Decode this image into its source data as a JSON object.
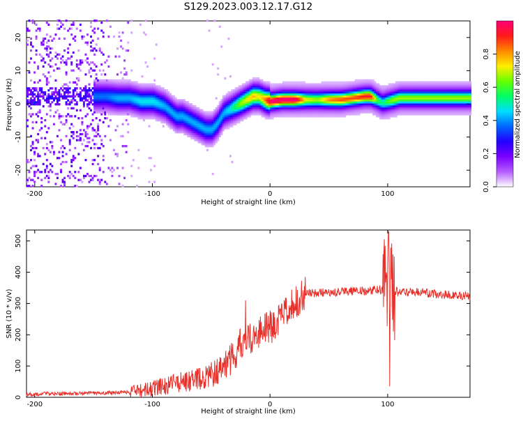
{
  "title": "S129.2023.003.12.17.G12",
  "chart_data": [
    {
      "type": "heatmap",
      "xlabel": "Height of straight line (km)",
      "ylabel": "Frequency (Hz)",
      "xlim": [
        -207,
        170
      ],
      "ylim": [
        -25,
        25
      ],
      "xticks": [
        -200,
        -100,
        0,
        100
      ],
      "yticks": [
        -20,
        -10,
        0,
        10,
        20
      ],
      "colorbar": {
        "label": "Normalized spectral amplitude",
        "range": [
          0,
          1
        ],
        "ticks": [
          0.0,
          0.2,
          0.4,
          0.6,
          0.8
        ],
        "tick_labels": [
          "0.0",
          "0.2",
          "0.4",
          "0.6",
          "0.8"
        ],
        "colormap": [
          "#ffffff",
          "#b55cff",
          "#7a00ff",
          "#2200ff",
          "#0066ff",
          "#00ddff",
          "#00ff66",
          "#66ff00",
          "#ffee00",
          "#ff8800",
          "#ff1a1a",
          "#ff0077"
        ]
      },
      "ridge": {
        "x": [
          -140,
          -130,
          -120,
          -110,
          -100,
          -90,
          -80,
          -75,
          -70,
          -65,
          -60,
          -55,
          -50,
          -45,
          -40,
          -35,
          -30,
          -25,
          -20,
          -15,
          -10,
          -5,
          0,
          10,
          20,
          30,
          40,
          50,
          60,
          70,
          80,
          85,
          90,
          95,
          100,
          105,
          110,
          120,
          130,
          140,
          150,
          160,
          170
        ],
        "y": [
          2,
          1.5,
          1.5,
          0.5,
          0.5,
          -1,
          -4,
          -4,
          -5,
          -6,
          -7,
          -8,
          -8,
          -6,
          -3,
          -2,
          -1,
          0,
          1,
          2,
          2,
          1,
          0.5,
          1,
          1,
          1,
          1,
          1,
          1,
          1.5,
          2,
          2,
          1,
          0,
          0.5,
          1,
          1.5,
          1.5,
          1.5,
          1.5,
          1.5,
          1.5,
          1.5
        ],
        "strength": [
          0.25,
          0.3,
          0.3,
          0.35,
          0.35,
          0.3,
          0.3,
          0.3,
          0.3,
          0.3,
          0.3,
          0.3,
          0.3,
          0.3,
          0.3,
          0.35,
          0.45,
          0.55,
          0.6,
          0.65,
          0.6,
          0.7,
          0.9,
          0.9,
          0.9,
          0.6,
          0.55,
          0.7,
          0.75,
          0.75,
          0.8,
          0.8,
          0.5,
          0.4,
          0.5,
          0.55,
          0.55,
          0.55,
          0.55,
          0.55,
          0.55,
          0.55,
          0.55
        ]
      }
    },
    {
      "type": "line",
      "xlabel": "Height of straight line (km)",
      "ylabel": "SNR (10 * v/v)",
      "xlim": [
        -207,
        170
      ],
      "ylim": [
        0,
        535
      ],
      "xticks": [
        -200,
        -100,
        0,
        100
      ],
      "yticks": [
        0,
        100,
        200,
        300,
        400,
        500
      ],
      "color": "#e8302a",
      "series": [
        {
          "x": [
            -207,
            -200,
            -190,
            -180,
            -170,
            -160,
            -150,
            -140,
            -130,
            -120,
            -110,
            -100,
            -90,
            -80,
            -70,
            -60,
            -50,
            -40,
            -35,
            -30,
            -25,
            -20,
            -15,
            -10,
            -5,
            0,
            5,
            10,
            15,
            20,
            25,
            30,
            40,
            50,
            60,
            70,
            80,
            90,
            95,
            98,
            100,
            102,
            104,
            106,
            110,
            120,
            130,
            140,
            150,
            160,
            170
          ],
          "y": [
            10,
            10,
            12,
            12,
            12,
            13,
            14,
            14,
            15,
            17,
            22,
            28,
            35,
            45,
            50,
            55,
            70,
            90,
            110,
            140,
            165,
            175,
            185,
            205,
            215,
            225,
            235,
            255,
            270,
            300,
            320,
            330,
            335,
            335,
            338,
            340,
            340,
            342,
            345,
            350,
            380,
            300,
            350,
            340,
            335,
            338,
            335,
            330,
            328,
            326,
            325
          ]
        }
      ]
    }
  ]
}
